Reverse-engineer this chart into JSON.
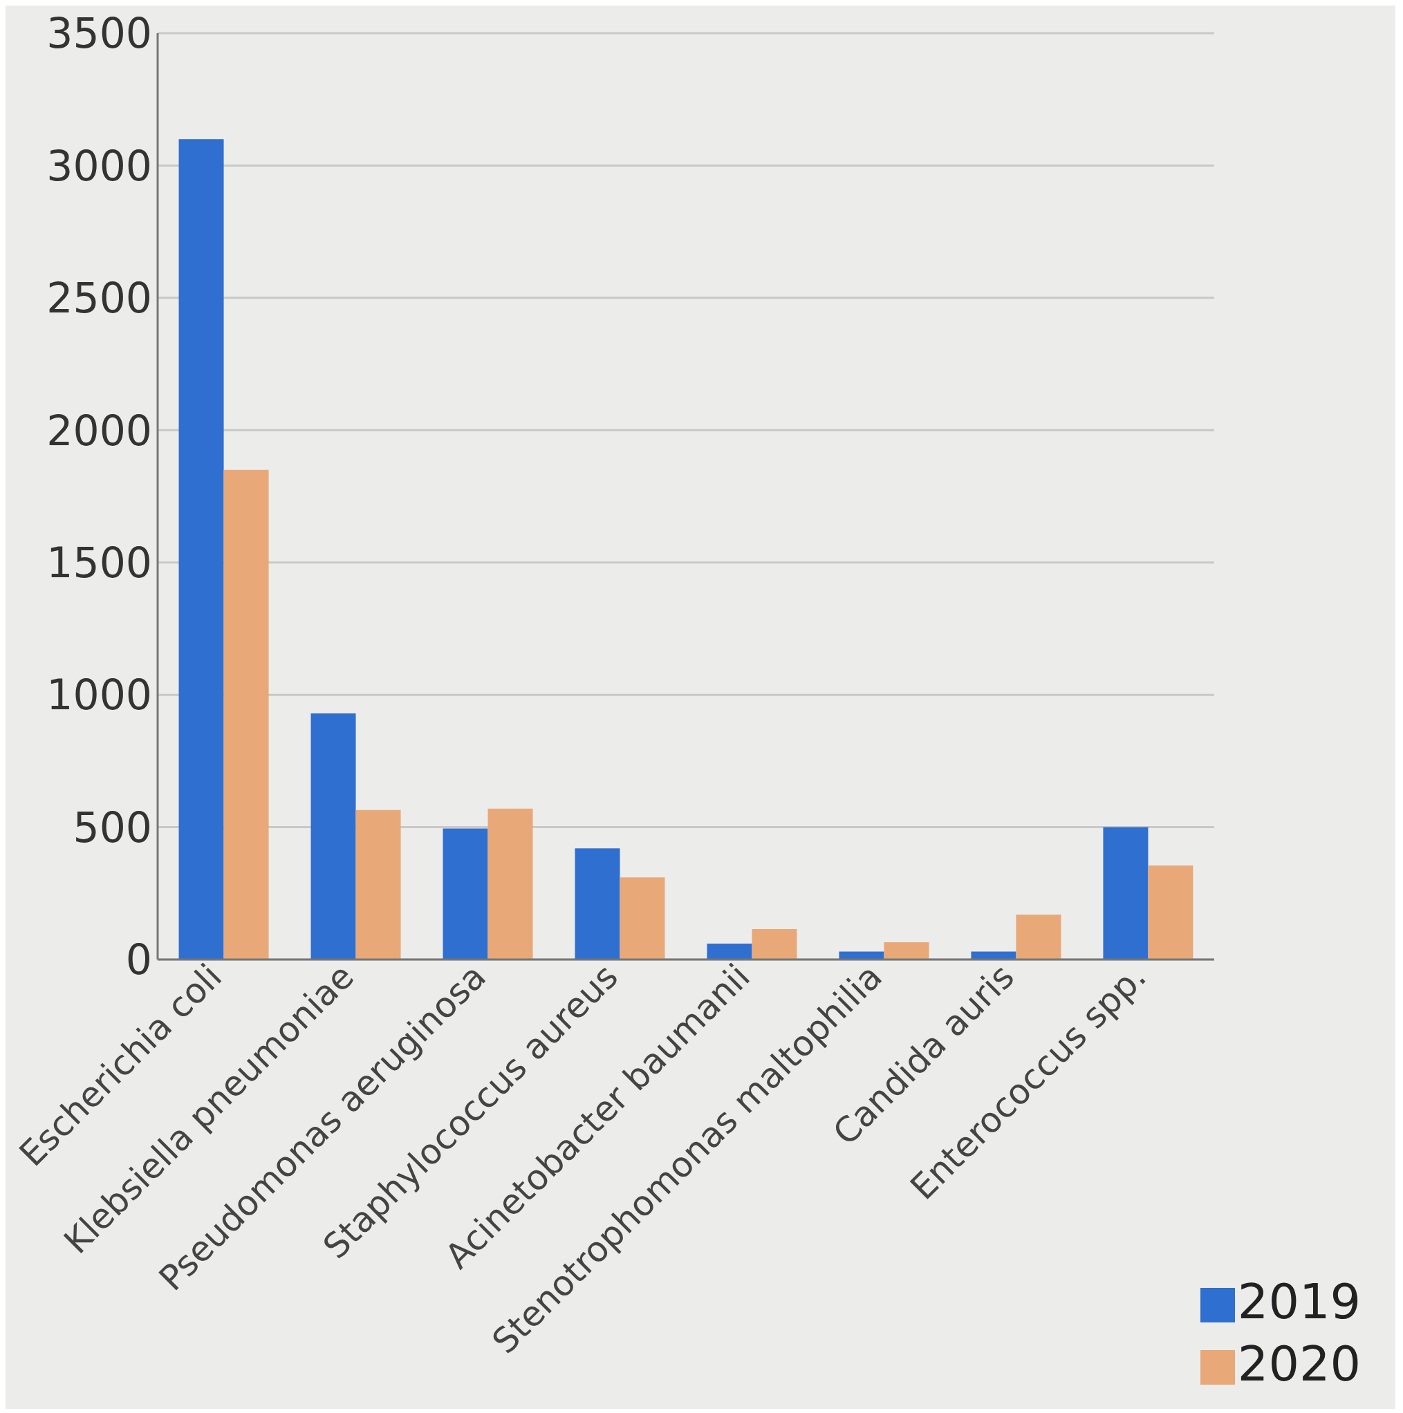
{
  "chart_data": {
    "type": "bar",
    "categories": [
      "Escherichia coli",
      "Klebsiella pneumoniae",
      "Pseudomonas aeruginosa",
      "Staphylococcus aureus",
      "Acinetobacter baumanii",
      "Stenotrophomonas maltophilia",
      "Candida auris",
      "Enterococcus spp."
    ],
    "series": [
      {
        "name": "2019",
        "color": "#2f6fd0",
        "values": [
          3100,
          930,
          495,
          420,
          60,
          30,
          30,
          500
        ]
      },
      {
        "name": "2020",
        "color": "#e8a878",
        "values": [
          1850,
          565,
          570,
          310,
          115,
          65,
          170,
          355
        ]
      }
    ],
    "ylim": [
      0,
      3500
    ],
    "yticks": [
      0,
      500,
      1000,
      1500,
      2000,
      2500,
      3000,
      3500
    ],
    "grid": "y",
    "legend": "bottom right"
  }
}
